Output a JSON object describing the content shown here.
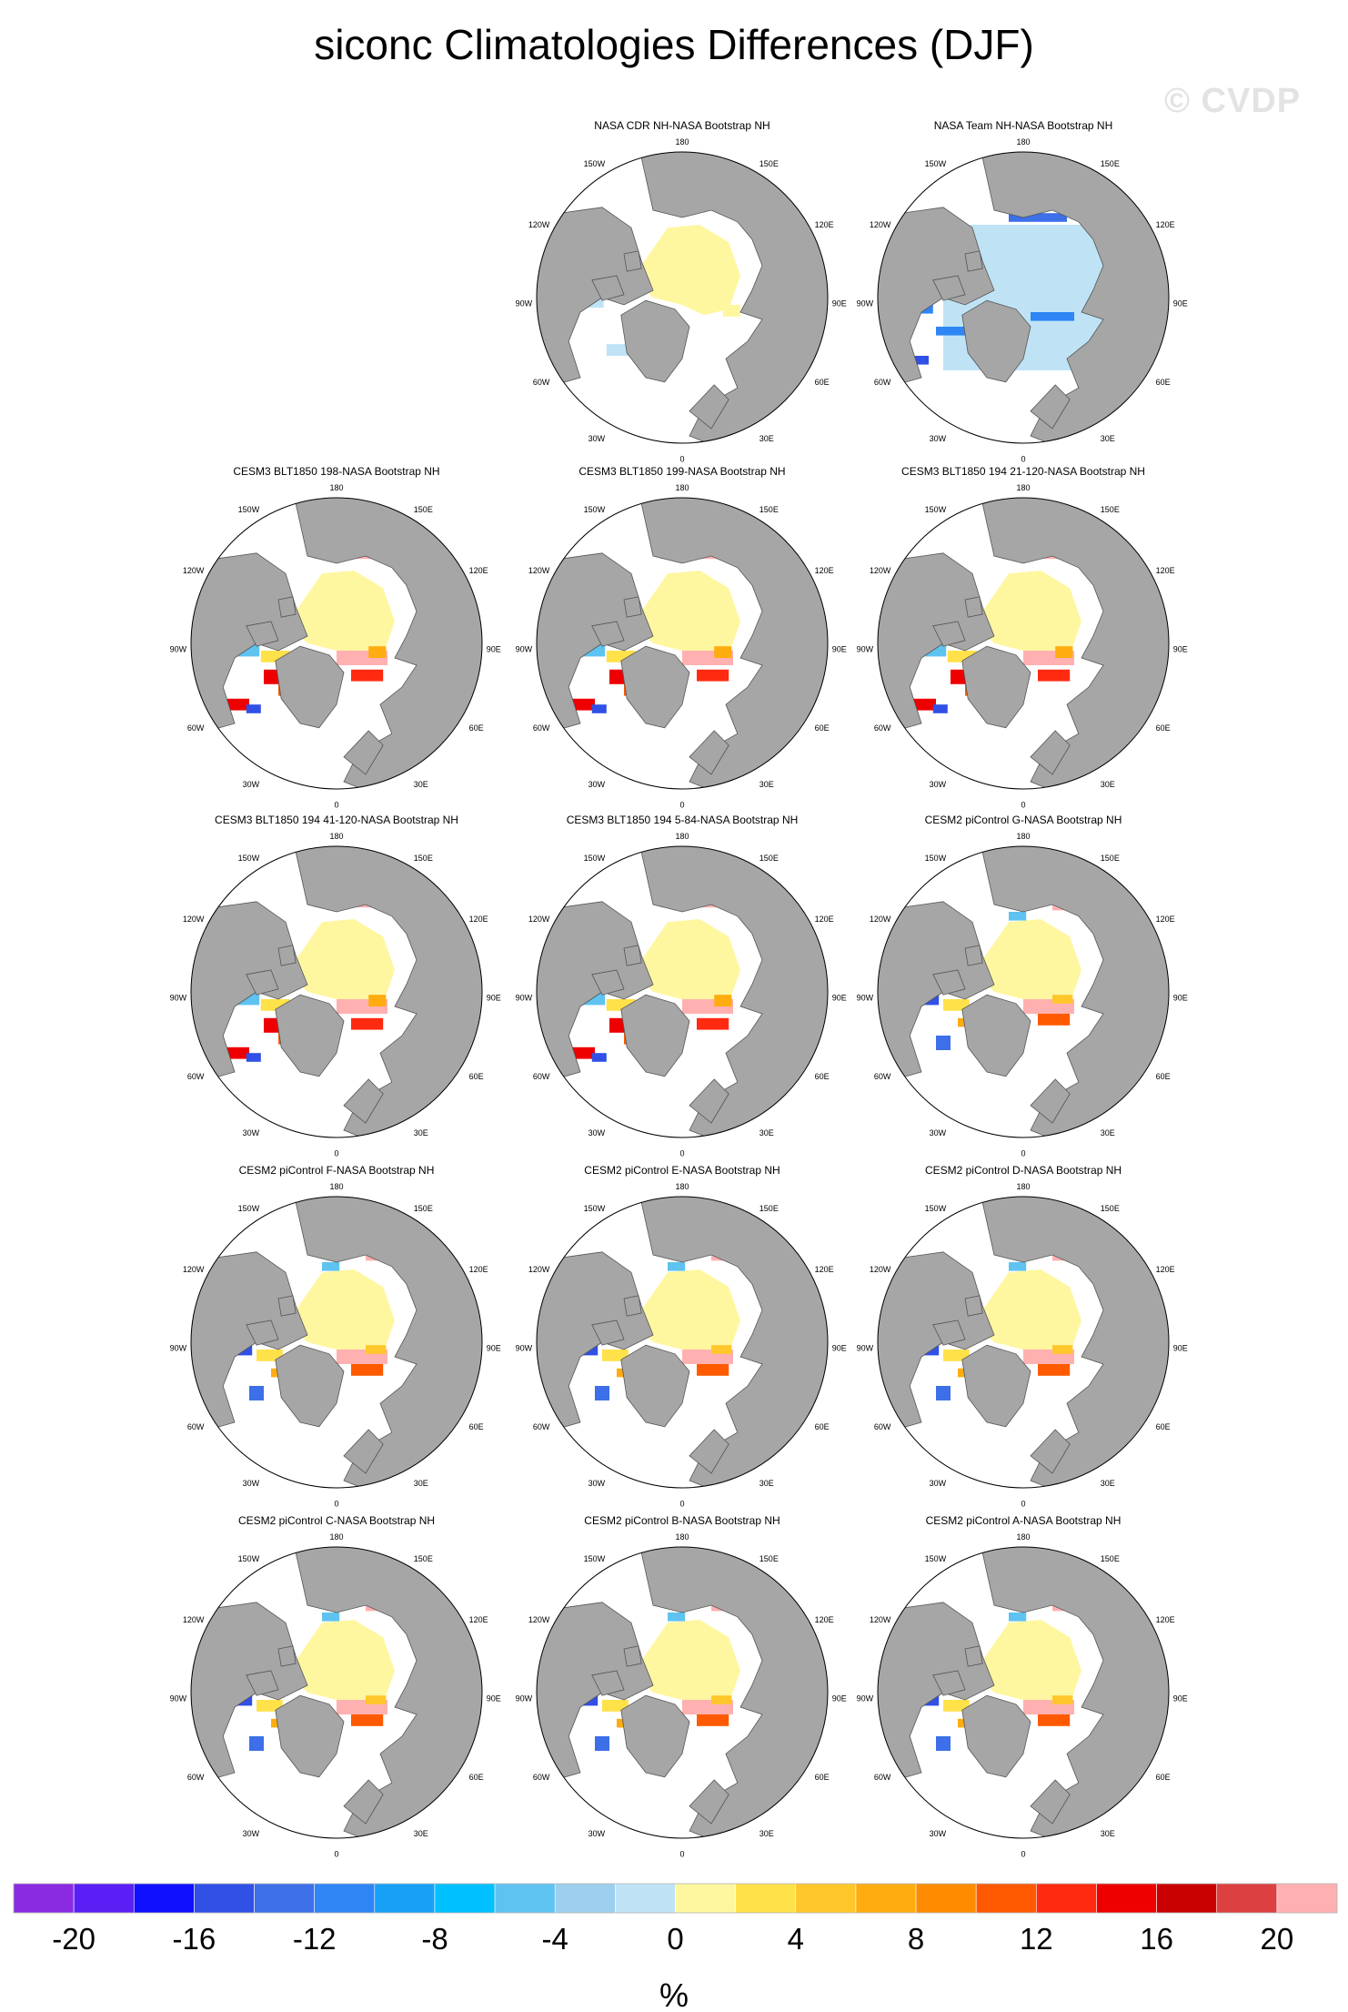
{
  "title": "siconc Climatologies Differences (DJF)",
  "watermark": "© CVDP",
  "map_labels": {
    "top": "180",
    "bottom": "0",
    "left_upper": "120W",
    "left_mid": "90W",
    "left_lower": "60W",
    "right_upper": "120E",
    "right_mid": "90E",
    "right_lower": "60E",
    "top_left": "150W",
    "top_right": "150E",
    "bottom_left": "30W",
    "bottom_right": "30E"
  },
  "chart_data": {
    "type": "polar-map-panels",
    "variable": "siconc",
    "season": "DJF",
    "panels": [
      {
        "title": "NASA CDR NH-NASA Bootstrap NH",
        "row": 0,
        "col": 1,
        "style": "cdr"
      },
      {
        "title": "NASA Team NH-NASA Bootstrap NH",
        "row": 0,
        "col": 2,
        "style": "team"
      },
      {
        "title": "CESM3 BLT1850 198-NASA Bootstrap NH",
        "row": 1,
        "col": 0,
        "style": "cesm3"
      },
      {
        "title": "CESM3 BLT1850 199-NASA Bootstrap NH",
        "row": 1,
        "col": 1,
        "style": "cesm3"
      },
      {
        "title": "CESM3 BLT1850 194 21-120-NASA Bootstrap NH",
        "row": 1,
        "col": 2,
        "style": "cesm3"
      },
      {
        "title": "CESM3 BLT1850 194 41-120-NASA Bootstrap NH",
        "row": 2,
        "col": 0,
        "style": "cesm3"
      },
      {
        "title": "CESM3 BLT1850 194 5-84-NASA Bootstrap NH",
        "row": 2,
        "col": 1,
        "style": "cesm3"
      },
      {
        "title": "CESM2 piControl G-NASA Bootstrap NH",
        "row": 2,
        "col": 2,
        "style": "cesm2"
      },
      {
        "title": "CESM2 piControl F-NASA Bootstrap NH",
        "row": 3,
        "col": 0,
        "style": "cesm2"
      },
      {
        "title": "CESM2 piControl E-NASA Bootstrap NH",
        "row": 3,
        "col": 1,
        "style": "cesm2"
      },
      {
        "title": "CESM2 piControl D-NASA Bootstrap NH",
        "row": 3,
        "col": 2,
        "style": "cesm2"
      },
      {
        "title": "CESM2 piControl C-NASA Bootstrap NH",
        "row": 4,
        "col": 0,
        "style": "cesm2"
      },
      {
        "title": "CESM2 piControl B-NASA Bootstrap NH",
        "row": 4,
        "col": 1,
        "style": "cesm2"
      },
      {
        "title": "CESM2 piControl A-NASA Bootstrap NH",
        "row": 4,
        "col": 2,
        "style": "cesm2"
      }
    ],
    "colorbar": {
      "unit": "%",
      "range": [
        -22,
        22
      ],
      "step": 2,
      "tick_values": [
        -20,
        -16,
        -12,
        -8,
        -4,
        0,
        4,
        8,
        12,
        16,
        20
      ],
      "tick_labels": [
        "-20",
        "-16",
        "-12",
        "-8",
        "-4",
        "0",
        "4",
        "8",
        "12",
        "16",
        "20"
      ],
      "colors": [
        "#8a2be2",
        "#5a1ff5",
        "#1010ff",
        "#3050e6",
        "#3c6fe8",
        "#2e86f5",
        "#18a0f7",
        "#00c0ff",
        "#5ec3f0",
        "#9dcfee",
        "#bfe3f5",
        "#fff6a0",
        "#ffe14a",
        "#ffc72a",
        "#ffac10",
        "#ff8c00",
        "#ff5a00",
        "#ff2a10",
        "#ee0000",
        "#c80000",
        "#dc4040",
        "#ffb0b0"
      ]
    }
  }
}
